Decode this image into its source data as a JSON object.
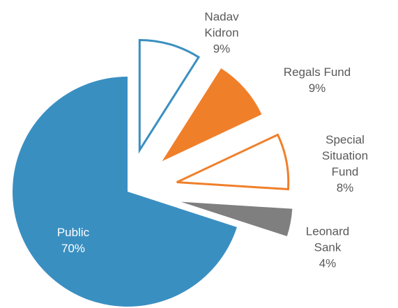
{
  "chart_data": {
    "type": "pie",
    "categories": [
      "Nadav Kidron",
      "Regals Fund",
      "Special Situation Fund",
      "Leonard Sank",
      "Public"
    ],
    "values": [
      9,
      9,
      8,
      4,
      70
    ],
    "value_labels": [
      "9%",
      "9%",
      "8%",
      "4%",
      "70%"
    ],
    "colors": [
      "#3a8fc1",
      "#f07f2a",
      "#f07f2a",
      "#7f7f7f",
      "#3a8fc1"
    ],
    "outlined": [
      true,
      false,
      true,
      false,
      false
    ]
  }
}
